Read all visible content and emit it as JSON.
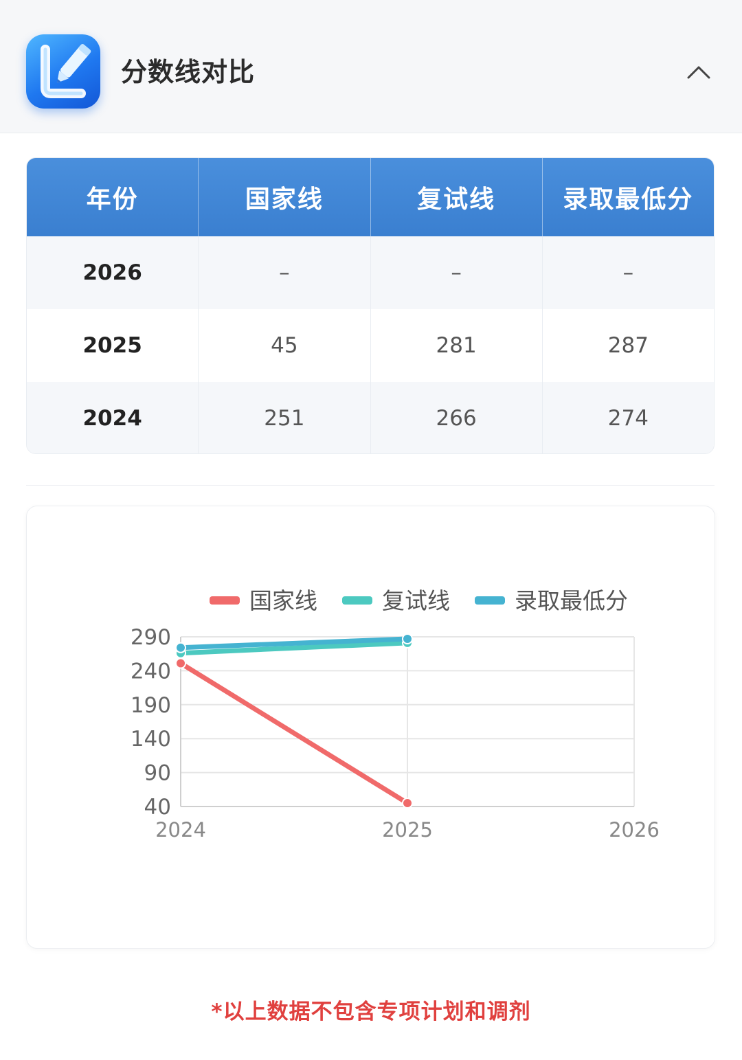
{
  "header": {
    "title": "分数线对比",
    "app_icon": "edit-pencil-icon",
    "collapse_icon": "chevron-up-icon"
  },
  "table": {
    "columns": [
      "年份",
      "国家线",
      "复试线",
      "录取最低分"
    ],
    "rows": [
      [
        "2026",
        "–",
        "–",
        "–"
      ],
      [
        "2025",
        "45",
        "281",
        "287"
      ],
      [
        "2024",
        "251",
        "266",
        "274"
      ]
    ]
  },
  "chart_data": {
    "type": "line",
    "x": [
      "2024",
      "2025",
      "2026"
    ],
    "yticks": [
      "290",
      "240",
      "190",
      "140",
      "90",
      "40"
    ],
    "ylim": [
      40,
      290
    ],
    "grid": true,
    "legend_position": "top",
    "series": [
      {
        "name": "国家线",
        "color": "#f06a6a",
        "values": [
          251,
          45,
          null
        ]
      },
      {
        "name": "复试线",
        "color": "#4cc9c0",
        "values": [
          266,
          281,
          null
        ]
      },
      {
        "name": "录取最低分",
        "color": "#45b3d1",
        "values": [
          274,
          287,
          null
        ]
      }
    ]
  },
  "footnote": "*以上数据不包含专项计划和调剂",
  "colors": {
    "table_header": "#3f86d6",
    "footnote": "#e0403e"
  }
}
